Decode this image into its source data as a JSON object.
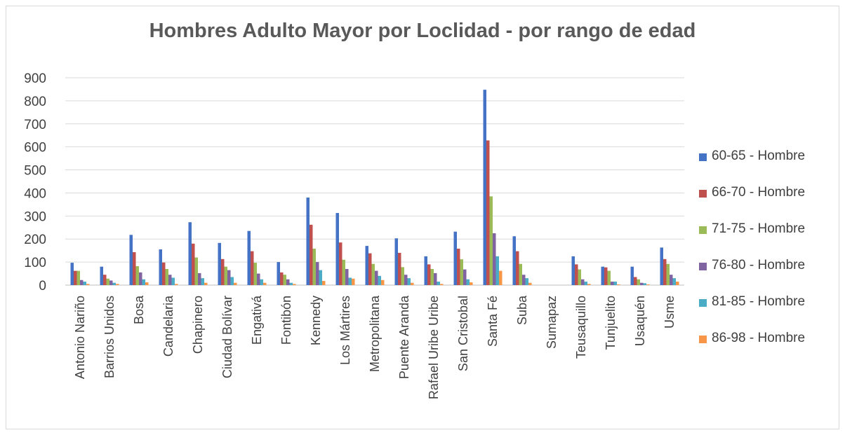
{
  "chart_data": {
    "type": "bar",
    "title": "Hombres Adulto Mayor por Loclidad - por rango de edad",
    "xlabel": "",
    "ylabel": "",
    "ylim": [
      0,
      900
    ],
    "yticks": [
      "0",
      "100",
      "200",
      "300",
      "400",
      "500",
      "600",
      "700",
      "800",
      "900"
    ],
    "grid": true,
    "legend_position": "right",
    "categories": [
      "Antonio Nariño",
      "Barrios Unidos",
      "Bosa",
      "Candelaria",
      "Chapinero",
      "Ciudad Bolívar",
      "Engativá",
      "Fontibón",
      "Kennedy",
      "Los Mártires",
      "Metropolitana",
      "Puente Aranda",
      "Rafael Uribe Uribe",
      "San Cristobal",
      "Santa Fé",
      "Suba",
      "Sumapaz",
      "Teusaquillo",
      "Tunjuelito",
      "Usaquén",
      "Usme"
    ],
    "series": [
      {
        "name": "60-65 - Hombre",
        "color": "#4472c4",
        "values": [
          97,
          80,
          218,
          155,
          273,
          183,
          235,
          100,
          380,
          313,
          170,
          203,
          125,
          232,
          848,
          212,
          0,
          125,
          80,
          80,
          163
        ]
      },
      {
        "name": "66-70 - Hombre",
        "color": "#c0504d",
        "values": [
          62,
          45,
          143,
          98,
          180,
          113,
          147,
          55,
          262,
          185,
          138,
          140,
          90,
          158,
          628,
          147,
          0,
          90,
          77,
          35,
          113
        ]
      },
      {
        "name": "71-75 - Hombre",
        "color": "#9bbb59",
        "values": [
          62,
          28,
          82,
          70,
          120,
          80,
          97,
          45,
          158,
          110,
          92,
          78,
          70,
          112,
          385,
          92,
          0,
          68,
          62,
          25,
          92
        ]
      },
      {
        "name": "76-80 - Hombre",
        "color": "#8064a2",
        "values": [
          22,
          20,
          55,
          45,
          52,
          65,
          50,
          25,
          100,
          70,
          62,
          45,
          52,
          68,
          225,
          45,
          0,
          25,
          15,
          10,
          45
        ]
      },
      {
        "name": "81-85 - Hombre",
        "color": "#4bacc6",
        "values": [
          15,
          10,
          25,
          32,
          30,
          35,
          25,
          10,
          65,
          32,
          40,
          30,
          15,
          25,
          125,
          30,
          0,
          15,
          15,
          8,
          30
        ]
      },
      {
        "name": "86-98 - Hombre",
        "color": "#f79646",
        "values": [
          5,
          5,
          12,
          5,
          10,
          10,
          10,
          5,
          18,
          28,
          22,
          10,
          5,
          12,
          62,
          10,
          0,
          5,
          3,
          3,
          15
        ]
      }
    ]
  }
}
